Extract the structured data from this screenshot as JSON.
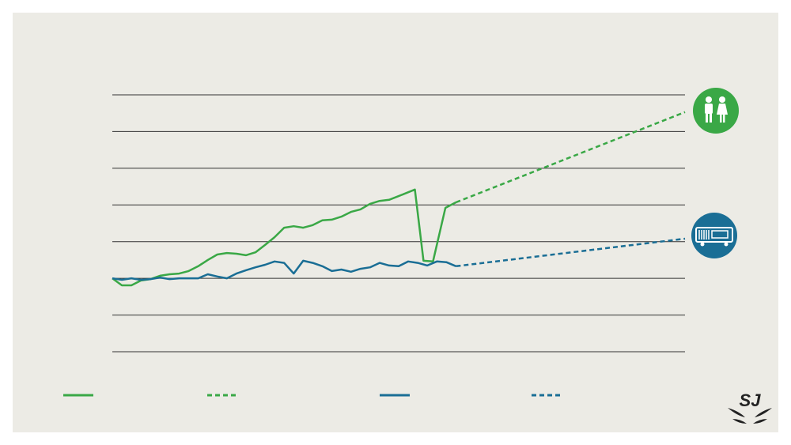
{
  "chart_data": {
    "type": "line",
    "xlim": [
      0,
      60
    ],
    "ylim": [
      0,
      7
    ],
    "yticks": [
      0,
      1,
      2,
      3,
      4,
      5,
      6,
      7
    ],
    "grid": true,
    "series": [
      {
        "color": "#3aa846",
        "dashed": false,
        "x": [
          0,
          1,
          2,
          3,
          4,
          5,
          6,
          7,
          8,
          9,
          10,
          11,
          12,
          13,
          14,
          15,
          16,
          17,
          18,
          19,
          20,
          21,
          22,
          23,
          24,
          25,
          26,
          27,
          28,
          29,
          30,
          31.7,
          32.6,
          33.6,
          34.9,
          36
        ],
        "values": [
          2.0,
          1.81,
          1.81,
          1.94,
          1.98,
          2.07,
          2.11,
          2.13,
          2.2,
          2.33,
          2.5,
          2.65,
          2.69,
          2.67,
          2.63,
          2.71,
          2.91,
          3.12,
          3.38,
          3.42,
          3.38,
          3.45,
          3.58,
          3.6,
          3.68,
          3.81,
          3.88,
          4.03,
          4.11,
          4.14,
          4.24,
          4.42,
          2.48,
          2.46,
          3.92,
          4.07
        ]
      },
      {
        "color": "#3aa846",
        "dashed": true,
        "x": [
          36,
          60
        ],
        "values": [
          4.07,
          6.53
        ]
      },
      {
        "color": "#1a6e95",
        "dashed": false,
        "x": [
          0,
          1,
          2,
          3,
          4,
          5,
          6,
          7,
          8,
          9,
          10,
          11,
          12,
          13,
          14,
          15,
          16,
          17,
          18,
          19,
          20,
          21,
          22,
          23,
          24,
          25,
          26,
          27,
          28,
          29,
          30,
          31,
          32,
          33,
          34,
          35,
          36
        ],
        "values": [
          2.0,
          1.96,
          2.0,
          1.96,
          1.98,
          2.02,
          1.98,
          2.0,
          2.0,
          2.0,
          2.11,
          2.05,
          2.0,
          2.13,
          2.22,
          2.3,
          2.37,
          2.46,
          2.42,
          2.13,
          2.48,
          2.42,
          2.33,
          2.2,
          2.24,
          2.18,
          2.26,
          2.3,
          2.42,
          2.35,
          2.33,
          2.46,
          2.42,
          2.35,
          2.46,
          2.44,
          2.33
        ]
      },
      {
        "color": "#1a6e95",
        "dashed": true,
        "x": [
          36,
          60
        ],
        "values": [
          2.33,
          3.08
        ]
      }
    ]
  },
  "logo": "SJ"
}
